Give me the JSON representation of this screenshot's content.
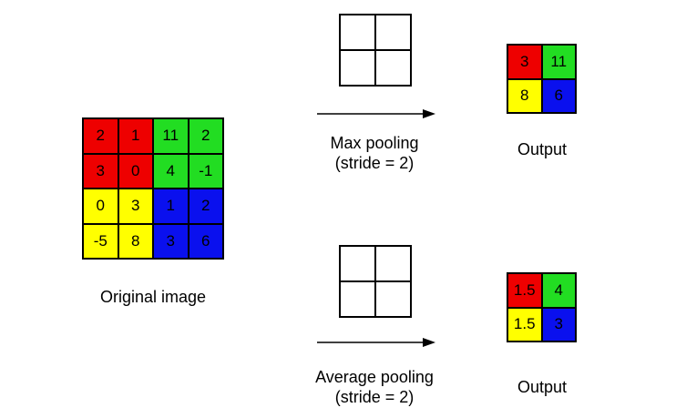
{
  "original": {
    "label": "Original image",
    "cells": [
      [
        {
          "v": "2",
          "c": "#ee0000"
        },
        {
          "v": "1",
          "c": "#ee0000"
        },
        {
          "v": "11",
          "c": "#22dd22"
        },
        {
          "v": "2",
          "c": "#22dd22"
        }
      ],
      [
        {
          "v": "3",
          "c": "#ee0000"
        },
        {
          "v": "0",
          "c": "#ee0000"
        },
        {
          "v": "4",
          "c": "#22dd22"
        },
        {
          "v": "-1",
          "c": "#22dd22"
        }
      ],
      [
        {
          "v": "0",
          "c": "#ffff00"
        },
        {
          "v": "3",
          "c": "#ffff00"
        },
        {
          "v": "1",
          "c": "#0a10ee"
        },
        {
          "v": "2",
          "c": "#0a10ee"
        }
      ],
      [
        {
          "v": "-5",
          "c": "#ffff00"
        },
        {
          "v": "8",
          "c": "#ffff00"
        },
        {
          "v": "3",
          "c": "#0a10ee"
        },
        {
          "v": "6",
          "c": "#0a10ee"
        }
      ]
    ]
  },
  "max_pool": {
    "label_line1": "Max pooling",
    "label_line2": "(stride = 2)",
    "output_label": "Output",
    "output": [
      [
        {
          "v": "3",
          "c": "#ee0000"
        },
        {
          "v": "11",
          "c": "#22dd22"
        }
      ],
      [
        {
          "v": "8",
          "c": "#ffff00"
        },
        {
          "v": "6",
          "c": "#0a10ee"
        }
      ]
    ]
  },
  "avg_pool": {
    "label_line1": "Average pooling",
    "label_line2": "(stride = 2)",
    "output_label": "Output",
    "output": [
      [
        {
          "v": "1.5",
          "c": "#ee0000"
        },
        {
          "v": "4",
          "c": "#22dd22"
        }
      ],
      [
        {
          "v": "1.5",
          "c": "#ffff00"
        },
        {
          "v": "3",
          "c": "#0a10ee"
        }
      ]
    ]
  }
}
